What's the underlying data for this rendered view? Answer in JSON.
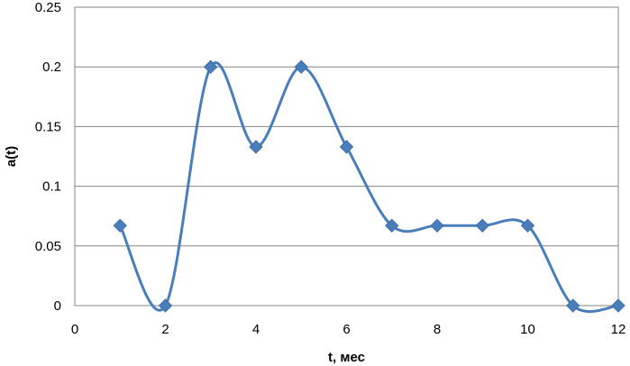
{
  "chart_data": {
    "type": "scatter",
    "title": "",
    "xlabel": "t, мес",
    "ylabel": "a(t)",
    "xlim": [
      0,
      12
    ],
    "ylim": [
      0,
      0.25
    ],
    "xticks": [
      0,
      2,
      4,
      6,
      8,
      10,
      12
    ],
    "yticks": [
      0,
      0.05,
      0.1,
      0.15,
      0.2,
      0.25
    ],
    "xtick_labels": [
      "0",
      "2",
      "4",
      "6",
      "8",
      "10",
      "12"
    ],
    "ytick_labels": [
      "0",
      "0.05",
      "0.1",
      "0.15",
      "0.2",
      "0.25"
    ],
    "grid": "horizontal",
    "smooth": true,
    "marker": "diamond",
    "series": [
      {
        "color": "#4a7ebb",
        "x": [
          1,
          2,
          3,
          4,
          5,
          6,
          7,
          8,
          9,
          10,
          11,
          12
        ],
        "y": [
          0.067,
          0,
          0.2,
          0.133,
          0.2,
          0.133,
          0.067,
          0.067,
          0.067,
          0.067,
          0,
          0
        ]
      }
    ]
  }
}
